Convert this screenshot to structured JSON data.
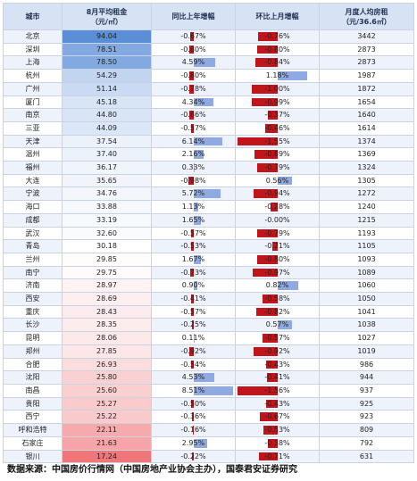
{
  "chart_data": {
    "type": "table",
    "columns": [
      "城市",
      "8月平均租金\n（元/㎡）",
      "同比上年增幅",
      "环比上月增幅",
      "月度人均房租\n（元/36.6㎡）"
    ],
    "rows": [
      {
        "city": "北京",
        "rent": "94.04",
        "yoy": -0.67,
        "mom": -0.76,
        "monthly": 3442,
        "yoy_label": "-0.67%",
        "mom_label": "-0.76%"
      },
      {
        "city": "深圳",
        "rent": "78.51",
        "yoy": -0.8,
        "mom": -0.8,
        "monthly": 2873,
        "yoy_label": "-0.80%",
        "mom_label": "-0.80%"
      },
      {
        "city": "上海",
        "rent": "78.50",
        "yoy": 4.59,
        "mom": -0.84,
        "monthly": 2873,
        "yoy_label": "4.59%",
        "mom_label": "-0.84%"
      },
      {
        "city": "杭州",
        "rent": "54.29",
        "yoy": -0.8,
        "mom": 1.18,
        "monthly": 1987,
        "yoy_label": "-0.80%",
        "mom_label": "1.18%"
      },
      {
        "city": "广州",
        "rent": "51.14",
        "yoy": -0.78,
        "mom": -1.0,
        "monthly": 1872,
        "yoy_label": "-0.78%",
        "mom_label": "-1.00%"
      },
      {
        "city": "厦门",
        "rent": "45.18",
        "yoy": 4.34,
        "mom": -0.99,
        "monthly": 1654,
        "yoy_label": "4.34%",
        "mom_label": "-0.99%"
      },
      {
        "city": "南京",
        "rent": "44.80",
        "yoy": -0.86,
        "mom": -0.37,
        "monthly": 1640,
        "yoy_label": "-0.86%",
        "mom_label": "-0.37%"
      },
      {
        "city": "三亚",
        "rent": "44.09",
        "yoy": -0.57,
        "mom": -0.46,
        "monthly": 1614,
        "yoy_label": "-0.57%",
        "mom_label": "-0.46%"
      },
      {
        "city": "天津",
        "rent": "37.54",
        "yoy": 6.14,
        "mom": -1.55,
        "monthly": 1374,
        "yoy_label": "6.14%",
        "mom_label": "-1.55%"
      },
      {
        "city": "温州",
        "rent": "37.40",
        "yoy": 2.16,
        "mom": -0.89,
        "monthly": 1369,
        "yoy_label": "2.16%",
        "mom_label": "-0.89%"
      },
      {
        "city": "福州",
        "rent": "36.17",
        "yoy": 0.33,
        "mom": -0.79,
        "monthly": 1324,
        "yoy_label": "0.33%",
        "mom_label": "-0.79%"
      },
      {
        "city": "大连",
        "rent": "35.65",
        "yoy": -0.98,
        "mom": 0.56,
        "monthly": 1305,
        "yoy_label": "-0.98%",
        "mom_label": "0.56%"
      },
      {
        "city": "宁波",
        "rent": "34.76",
        "yoy": 5.72,
        "mom": -0.94,
        "monthly": 1272,
        "yoy_label": "5.72%",
        "mom_label": "-0.94%"
      },
      {
        "city": "海口",
        "rent": "33.88",
        "yoy": 1.13,
        "mom": -0.28,
        "monthly": 1240,
        "yoy_label": "1.13%",
        "mom_label": "-0.28%"
      },
      {
        "city": "成都",
        "rent": "33.19",
        "yoy": 1.65,
        "mom": -0.0,
        "monthly": 1215,
        "yoy_label": "1.65%",
        "mom_label": "-0.00%"
      },
      {
        "city": "武汉",
        "rent": "32.60",
        "yoy": -0.57,
        "mom": -0.79,
        "monthly": 1193,
        "yoy_label": "-0.57%",
        "mom_label": "-0.79%"
      },
      {
        "city": "青岛",
        "rent": "30.18",
        "yoy": -0.53,
        "mom": -0.21,
        "monthly": 1105,
        "yoy_label": "-0.53%",
        "mom_label": "-0.21%"
      },
      {
        "city": "兰州",
        "rent": "29.85",
        "yoy": 1.67,
        "mom": -0.8,
        "monthly": 1093,
        "yoy_label": "1.67%",
        "mom_label": "-0.80%"
      },
      {
        "city": "南宁",
        "rent": "29.75",
        "yoy": -0.73,
        "mom": -0.97,
        "monthly": 1089,
        "yoy_label": "-0.73%",
        "mom_label": "-0.97%"
      },
      {
        "city": "济南",
        "rent": "28.97",
        "yoy": 0.9,
        "mom": 0.82,
        "monthly": 1060,
        "yoy_label": "0.90%",
        "mom_label": "0.82%"
      },
      {
        "city": "西安",
        "rent": "28.69",
        "yoy": -0.41,
        "mom": -0.58,
        "monthly": 1050,
        "yoy_label": "-0.41%",
        "mom_label": "-0.58%"
      },
      {
        "city": "重庆",
        "rent": "28.43",
        "yoy": -0.57,
        "mom": -0.82,
        "monthly": 1041,
        "yoy_label": "-0.57%",
        "mom_label": "-0.82%"
      },
      {
        "city": "长沙",
        "rent": "28.35",
        "yoy": -0.25,
        "mom": 0.57,
        "monthly": 1038,
        "yoy_label": "-0.25%",
        "mom_label": "0.57%"
      },
      {
        "city": "昆明",
        "rent": "28.06",
        "yoy": 0.11,
        "mom": -0.57,
        "monthly": 1027,
        "yoy_label": "0.11%",
        "mom_label": "-0.57%"
      },
      {
        "city": "郑州",
        "rent": "27.85",
        "yoy": -0.92,
        "mom": -0.92,
        "monthly": 1019,
        "yoy_label": "-0.92%",
        "mom_label": "-0.92%"
      },
      {
        "city": "合肥",
        "rent": "26.93",
        "yoy": -0.54,
        "mom": -0.43,
        "monthly": 986,
        "yoy_label": "-0.54%",
        "mom_label": "-0.43%"
      },
      {
        "city": "沈阳",
        "rent": "25.80",
        "yoy": 4.53,
        "mom": -0.41,
        "monthly": 944,
        "yoy_label": "4.53%",
        "mom_label": "-0.41%"
      },
      {
        "city": "南昌",
        "rent": "25.60",
        "yoy": 8.51,
        "mom": -1.56,
        "monthly": 937,
        "yoy_label": "8.51%",
        "mom_label": "-1.56%"
      },
      {
        "city": "贵阳",
        "rent": "25.27",
        "yoy": -0.5,
        "mom": -0.43,
        "monthly": 925,
        "yoy_label": "-0.50%",
        "mom_label": "-0.43%"
      },
      {
        "city": "西宁",
        "rent": "25.22",
        "yoy": -0.36,
        "mom": -0.67,
        "monthly": 923,
        "yoy_label": "-0.36%",
        "mom_label": "-0.67%"
      },
      {
        "city": "呼和浩特",
        "rent": "22.11",
        "yoy": -0.16,
        "mom": -0.53,
        "monthly": 809,
        "yoy_label": "-0.16%",
        "mom_label": "-0.53%"
      },
      {
        "city": "石家庄",
        "rent": "21.63",
        "yoy": 2.95,
        "mom": -0.38,
        "monthly": 792,
        "yoy_label": "2.95%",
        "mom_label": "-0.38%"
      },
      {
        "city": "银川",
        "rent": "17.24",
        "yoy": -0.22,
        "mom": -0.71,
        "monthly": 631,
        "yoy_label": "-0.22%",
        "mom_label": "-0.71%"
      }
    ],
    "rent_colors": {
      "high": "#5a8fd6",
      "mid": "#ffffff",
      "low": "#f0767a"
    },
    "bar_colors": {
      "positive": "#8fa9e3",
      "negative": "#c0161b"
    }
  },
  "source": "数据来源：中国房价行情网（中国房地产业协会主办），国泰君安证券研究"
}
